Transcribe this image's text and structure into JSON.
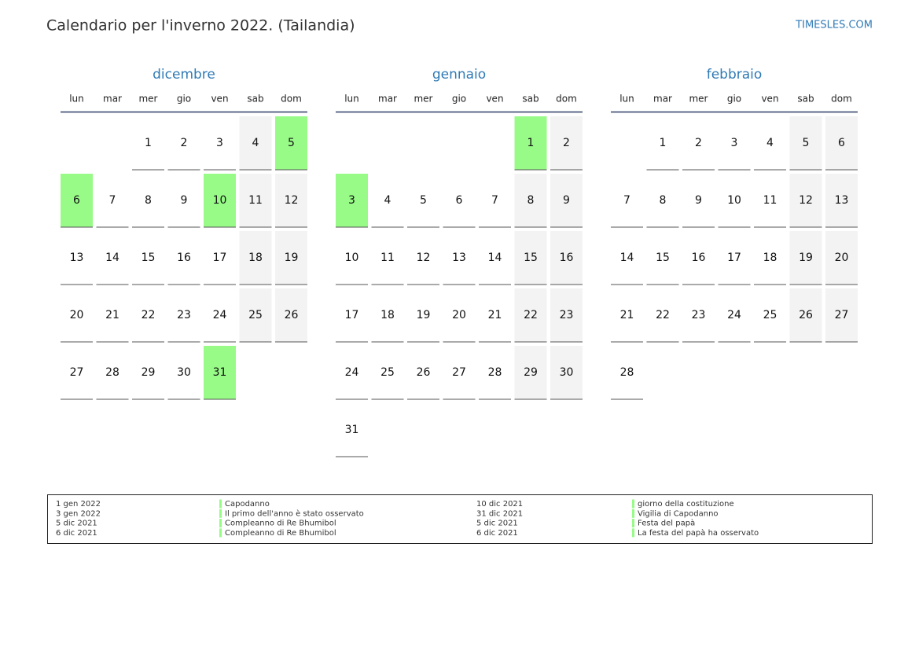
{
  "header": {
    "title": "Calendario per l'inverno 2022. (Tailandia)",
    "site": "TIMESLES.COM"
  },
  "weekdays": [
    "lun",
    "mar",
    "mer",
    "gio",
    "ven",
    "sab",
    "dom"
  ],
  "holiday_color": "#98fb88",
  "weekend_color": "#f3f3f3",
  "months": [
    {
      "name": "dicembre",
      "holidays": [
        5,
        6,
        10,
        31
      ],
      "weeks": [
        [
          null,
          null,
          1,
          2,
          3,
          4,
          5
        ],
        [
          6,
          7,
          8,
          9,
          10,
          11,
          12
        ],
        [
          13,
          14,
          15,
          16,
          17,
          18,
          19
        ],
        [
          20,
          21,
          22,
          23,
          24,
          25,
          26
        ],
        [
          27,
          28,
          29,
          30,
          31,
          null,
          null
        ]
      ]
    },
    {
      "name": "gennaio",
      "holidays": [
        1,
        3
      ],
      "weeks": [
        [
          null,
          null,
          null,
          null,
          null,
          1,
          2
        ],
        [
          3,
          4,
          5,
          6,
          7,
          8,
          9
        ],
        [
          10,
          11,
          12,
          13,
          14,
          15,
          16
        ],
        [
          17,
          18,
          19,
          20,
          21,
          22,
          23
        ],
        [
          24,
          25,
          26,
          27,
          28,
          29,
          30
        ],
        [
          31,
          null,
          null,
          null,
          null,
          null,
          null
        ]
      ]
    },
    {
      "name": "febbraio",
      "holidays": [],
      "weeks": [
        [
          null,
          1,
          2,
          3,
          4,
          5,
          6
        ],
        [
          7,
          8,
          9,
          10,
          11,
          12,
          13
        ],
        [
          14,
          15,
          16,
          17,
          18,
          19,
          20
        ],
        [
          21,
          22,
          23,
          24,
          25,
          26,
          27
        ],
        [
          28,
          null,
          null,
          null,
          null,
          null,
          null
        ]
      ]
    }
  ],
  "holidays": [
    {
      "date": "1 gen 2022",
      "name": "Capodanno"
    },
    {
      "date": "3 gen 2022",
      "name": "Il primo dell'anno è stato osservato"
    },
    {
      "date": "5 dic 2021",
      "name": "Compleanno di Re Bhumibol"
    },
    {
      "date": "6 dic 2021",
      "name": "Compleanno di Re Bhumibol"
    },
    {
      "date": "10 dic 2021",
      "name": "giorno della costituzione"
    },
    {
      "date": "31 dic 2021",
      "name": "Vigilia di Capodanno"
    },
    {
      "date": "5 dic 2021",
      "name": "Festa del papà"
    },
    {
      "date": "6 dic 2021",
      "name": "La festa del papà ha osservato"
    }
  ]
}
